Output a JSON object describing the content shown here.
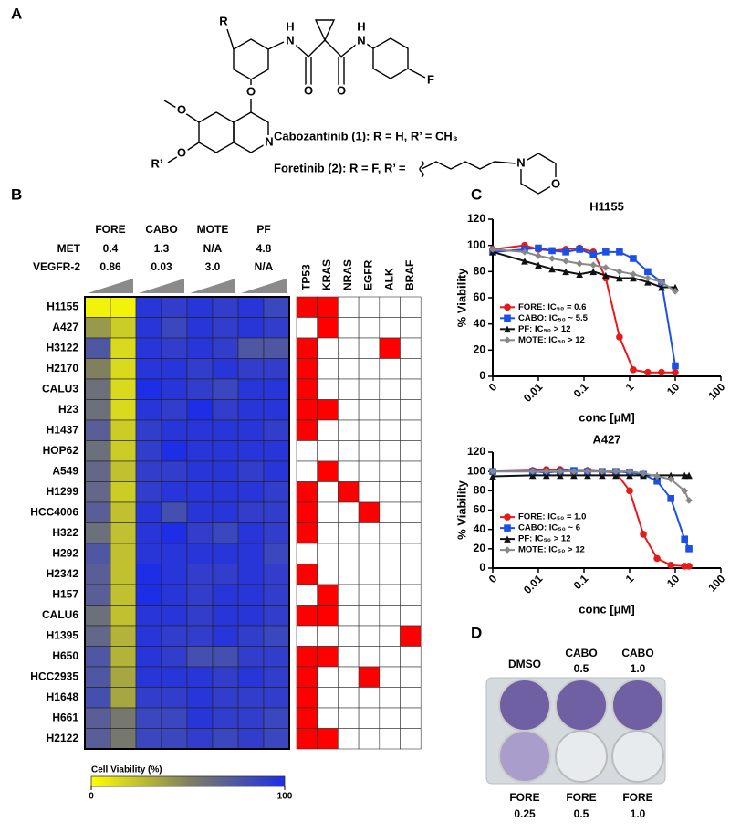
{
  "panel_labels": [
    "A",
    "B",
    "C",
    "D"
  ],
  "structure": {
    "atoms": [
      "R",
      "H",
      "N",
      "O",
      "O",
      "H",
      "N",
      "F",
      "O",
      "O",
      "O",
      "R’",
      "N",
      "N",
      "O"
    ],
    "compounds": [
      "Cabozantinib (1): R = H, R’ = CH₃",
      "Foretinib (2): R = F, R’ ="
    ]
  },
  "chart_data": [
    {
      "type": "heatmap",
      "groups": [
        "FORE",
        "CABO",
        "MOTE",
        "PF"
      ],
      "ic50": {
        "labels": [
          "MET",
          "VEGFR-2"
        ],
        "rows": [
          [
            "0.4",
            "1.3",
            "N/A",
            "4.8"
          ],
          [
            "0.86",
            "0.03",
            "3.0",
            "N/A"
          ]
        ]
      },
      "rows": [
        "H1155",
        "A427",
        "H3122",
        "H2170",
        "CALU3",
        "H23",
        "H1437",
        "HOP62",
        "A549",
        "H1299",
        "HCC4006",
        "H322",
        "H292",
        "H2342",
        "H157",
        "CALU6",
        "H1395",
        "H650",
        "HCC2935",
        "H1648",
        "H661",
        "H2122"
      ],
      "values": [
        [
          5,
          5,
          95,
          90,
          95,
          90,
          95,
          85
        ],
        [
          40,
          20,
          95,
          85,
          95,
          90,
          95,
          90
        ],
        [
          75,
          15,
          95,
          90,
          95,
          90,
          75,
          75
        ],
        [
          50,
          15,
          95,
          95,
          90,
          95,
          90,
          90
        ],
        [
          60,
          15,
          100,
          95,
          90,
          85,
          95,
          95
        ],
        [
          60,
          15,
          95,
          90,
          100,
          90,
          95,
          95
        ],
        [
          70,
          20,
          90,
          95,
          95,
          95,
          95,
          90
        ],
        [
          60,
          20,
          90,
          100,
          95,
          95,
          95,
          95
        ],
        [
          65,
          25,
          90,
          90,
          95,
          95,
          90,
          95
        ],
        [
          65,
          20,
          90,
          95,
          95,
          95,
          95,
          90
        ],
        [
          70,
          25,
          95,
          80,
          95,
          95,
          90,
          90
        ],
        [
          60,
          25,
          95,
          100,
          90,
          85,
          95,
          90
        ],
        [
          75,
          25,
          95,
          95,
          95,
          95,
          95,
          85
        ],
        [
          70,
          25,
          100,
          95,
          90,
          90,
          95,
          90
        ],
        [
          70,
          25,
          100,
          95,
          90,
          95,
          95,
          90
        ],
        [
          60,
          25,
          95,
          95,
          90,
          95,
          95,
          90
        ],
        [
          65,
          30,
          95,
          90,
          90,
          95,
          90,
          85
        ],
        [
          75,
          30,
          95,
          90,
          80,
          80,
          90,
          90
        ],
        [
          75,
          35,
          95,
          95,
          95,
          90,
          95,
          90
        ],
        [
          80,
          35,
          90,
          90,
          95,
          90,
          90,
          90
        ],
        [
          70,
          55,
          85,
          85,
          95,
          90,
          90,
          85
        ],
        [
          70,
          55,
          85,
          85,
          90,
          85,
          90,
          85
        ]
      ],
      "colormap": [
        "#ffff00",
        "#808060",
        "#1e2ee6"
      ],
      "colorbar": {
        "label": "Cell Viability (%)",
        "range": [
          0,
          100
        ],
        "ticks": [
          0,
          100
        ]
      }
    },
    {
      "type": "grid",
      "columns": [
        "TP53",
        "KRAS",
        "NRAS",
        "EGFR",
        "ALK",
        "BRAF"
      ],
      "color": "#ff0000",
      "values": [
        [
          1,
          1,
          0,
          0,
          0,
          0
        ],
        [
          0,
          1,
          0,
          0,
          0,
          0
        ],
        [
          1,
          0,
          0,
          0,
          1,
          0
        ],
        [
          1,
          0,
          0,
          0,
          0,
          0
        ],
        [
          1,
          0,
          0,
          0,
          0,
          0
        ],
        [
          1,
          1,
          0,
          0,
          0,
          0
        ],
        [
          1,
          0,
          0,
          0,
          0,
          0
        ],
        [
          0,
          0,
          0,
          0,
          0,
          0
        ],
        [
          0,
          1,
          0,
          0,
          0,
          0
        ],
        [
          1,
          0,
          1,
          0,
          0,
          0
        ],
        [
          1,
          0,
          0,
          1,
          0,
          0
        ],
        [
          1,
          0,
          0,
          0,
          0,
          0
        ],
        [
          0,
          0,
          0,
          0,
          0,
          0
        ],
        [
          1,
          0,
          0,
          0,
          0,
          0
        ],
        [
          0,
          1,
          0,
          0,
          0,
          0
        ],
        [
          1,
          1,
          0,
          0,
          0,
          0
        ],
        [
          0,
          0,
          0,
          0,
          0,
          1
        ],
        [
          1,
          1,
          0,
          0,
          0,
          0
        ],
        [
          1,
          0,
          0,
          1,
          0,
          0
        ],
        [
          1,
          0,
          0,
          0,
          0,
          0
        ],
        [
          1,
          0,
          0,
          0,
          0,
          0
        ],
        [
          1,
          1,
          0,
          0,
          0,
          0
        ]
      ]
    },
    {
      "type": "line",
      "title": "H1155",
      "x_label": "conc [μM]",
      "y_label": "% Viability",
      "log_x": true,
      "x": [
        0.001,
        0.005,
        0.01,
        0.02,
        0.04,
        0.08,
        0.16,
        0.3,
        0.6,
        1.2,
        2.5,
        5,
        10
      ],
      "xlim": [
        0.001,
        100
      ],
      "xticks": [
        {
          "value": 0.001,
          "label": "0"
        },
        0.01,
        0.1,
        1,
        10,
        100
      ],
      "ylim": [
        0,
        120
      ],
      "yticks": [
        0,
        20,
        40,
        60,
        80,
        100,
        120
      ],
      "series": [
        {
          "name": "FORE: IC₅₀ = 0.6",
          "color": "#e8191b",
          "marker": "circle",
          "values": [
            97,
            100,
            97,
            96,
            97,
            98,
            95,
            75,
            30,
            5,
            3,
            3,
            3
          ]
        },
        {
          "name": "CABO: IC₅₀ ~ 5.5",
          "color": "#1b4fe8",
          "marker": "square",
          "values": [
            95,
            97,
            98,
            96,
            95,
            97,
            93,
            95,
            95,
            90,
            80,
            72,
            8
          ]
        },
        {
          "name": "PF: IC₅₀ > 12",
          "color": "#111111",
          "marker": "triangle",
          "values": [
            95,
            88,
            85,
            82,
            80,
            78,
            80,
            77,
            75,
            75,
            72,
            68,
            68
          ]
        },
        {
          "name": "MOTE: IC₅₀ > 12",
          "color": "#888888",
          "marker": "diamond",
          "values": [
            97,
            95,
            92,
            90,
            88,
            86,
            85,
            83,
            80,
            78,
            75,
            72,
            65
          ]
        }
      ]
    },
    {
      "type": "line",
      "title": "A427",
      "x_label": "conc [μM]",
      "y_label": "% Viability",
      "log_x": true,
      "x": [
        0.001,
        0.0075,
        0.015,
        0.03,
        0.06,
        0.12,
        0.25,
        0.5,
        1,
        2,
        4,
        8,
        16,
        20
      ],
      "xlim": [
        0.001,
        100
      ],
      "xticks": [
        {
          "value": 0.001,
          "label": "0"
        },
        0.01,
        0.1,
        1,
        10,
        100
      ],
      "ylim": [
        0,
        120
      ],
      "yticks": [
        0,
        20,
        40,
        60,
        80,
        100,
        120
      ],
      "series": [
        {
          "name": "FORE: IC₅₀ = 1.0",
          "color": "#e8191b",
          "marker": "circle",
          "values": [
            100,
            101,
            102,
            102,
            100,
            101,
            100,
            99,
            80,
            35,
            10,
            3,
            2,
            2
          ]
        },
        {
          "name": "CABO: IC₅₀ ~ 6",
          "color": "#1b4fe8",
          "marker": "square",
          "values": [
            100,
            100,
            99,
            100,
            101,
            100,
            100,
            100,
            99,
            97,
            90,
            72,
            30,
            20
          ]
        },
        {
          "name": "PF: IC₅₀ > 12",
          "color": "#111111",
          "marker": "triangle",
          "values": [
            95,
            96,
            96,
            96,
            96,
            96,
            96,
            96,
            96,
            96,
            96,
            96,
            96,
            96
          ]
        },
        {
          "name": "MOTE: IC₅₀ > 12",
          "color": "#888888",
          "marker": "diamond",
          "values": [
            100,
            100,
            100,
            100,
            100,
            100,
            100,
            100,
            100,
            98,
            95,
            92,
            80,
            70
          ]
        }
      ]
    }
  ],
  "plate": {
    "top": [
      {
        "drug": "DMSO"
      },
      {
        "drug": "CABO",
        "dose": "0.5"
      },
      {
        "drug": "CABO",
        "dose": "1.0"
      }
    ],
    "bottom": [
      {
        "drug": "FORE",
        "dose": "0.25"
      },
      {
        "drug": "FORE",
        "dose": "0.5"
      },
      {
        "drug": "FORE",
        "dose": "1.0"
      }
    ]
  }
}
